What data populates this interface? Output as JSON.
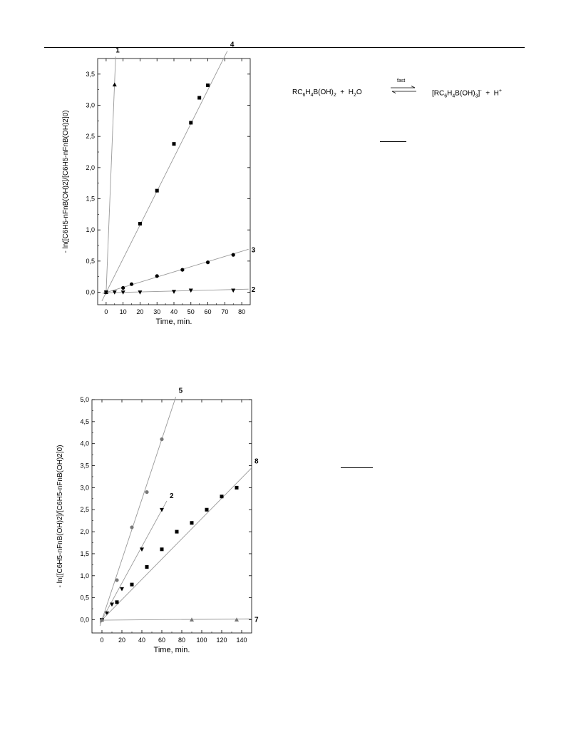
{
  "chart_data": [
    {
      "type": "scatter",
      "xlabel": "Time, min.",
      "ylabel": "- ln([C6H5-nFnB(OH)2]/[C6H5-nFnB(OH)2]0)",
      "xlim": [
        -5,
        85
      ],
      "ylim": [
        -0.2,
        3.75
      ],
      "xticks": [
        0,
        10,
        20,
        30,
        40,
        50,
        60,
        70,
        80
      ],
      "yticks": [
        "0,0",
        "0,5",
        "1,0",
        "1,5",
        "2,0",
        "2,5",
        "3,0",
        "3,5"
      ],
      "series": [
        {
          "name": "1",
          "marker": "triangle-up",
          "x": [
            0,
            5
          ],
          "y": [
            0,
            3.33
          ],
          "fit": {
            "x": [
              0,
              5.6
            ],
            "y": [
              0,
              3.78
            ]
          }
        },
        {
          "name": "4",
          "marker": "square",
          "x": [
            0,
            20,
            30,
            40,
            50,
            55,
            60
          ],
          "y": [
            0,
            1.1,
            1.63,
            2.38,
            2.72,
            3.12,
            3.32
          ],
          "fit": {
            "x": [
              -2.5,
              71.5
            ],
            "y": [
              -0.14,
              3.87
            ]
          }
        },
        {
          "name": "3",
          "marker": "circle",
          "x": [
            0,
            10,
            15,
            30,
            45,
            60,
            75
          ],
          "y": [
            0,
            0.07,
            0.13,
            0.26,
            0.36,
            0.48,
            0.6
          ],
          "fit": {
            "x": [
              -2,
              84
            ],
            "y": [
              -0.02,
              0.69
            ]
          }
        },
        {
          "name": "2",
          "marker": "triangle-down",
          "x": [
            0,
            5,
            10,
            20,
            40,
            50,
            75
          ],
          "y": [
            0,
            0,
            0,
            0,
            0.01,
            0.03,
            0.03
          ],
          "fit": {
            "x": [
              -2,
              84
            ],
            "y": [
              -0.01,
              0.05
            ]
          }
        }
      ]
    },
    {
      "type": "scatter",
      "xlabel": "Time, min.",
      "ylabel": "- ln([C6H5-nFnB(OH)2]/[C6H5-nFnB(OH)2]0)",
      "xlim": [
        -10,
        150
      ],
      "ylim": [
        -0.3,
        5.0
      ],
      "xticks": [
        0,
        20,
        40,
        60,
        80,
        100,
        120,
        140
      ],
      "yticks": [
        "0,0",
        "0,5",
        "1,0",
        "1,5",
        "2,0",
        "2,5",
        "3,0",
        "3,5",
        "4,0",
        "4,5",
        "5,0"
      ],
      "series": [
        {
          "name": "5",
          "marker": "circle",
          "x": [
            0,
            15,
            30,
            45,
            60
          ],
          "y": [
            0,
            0.9,
            2.1,
            2.9,
            4.1
          ],
          "fit": {
            "x": [
              -2,
              74
            ],
            "y": [
              -0.14,
              5.06
            ]
          }
        },
        {
          "name": "2",
          "marker": "triangle-down",
          "x": [
            0,
            5,
            10,
            20,
            40,
            60
          ],
          "y": [
            0,
            0.15,
            0.35,
            0.7,
            1.6,
            2.5
          ],
          "fit": {
            "x": [
              -2,
              65
            ],
            "y": [
              -0.08,
              2.7
            ]
          }
        },
        {
          "name": "8",
          "marker": "square",
          "x": [
            0,
            15,
            30,
            45,
            60,
            75,
            90,
            105,
            120,
            135
          ],
          "y": [
            0,
            0.4,
            0.8,
            1.2,
            1.6,
            2.0,
            2.2,
            2.5,
            2.8,
            3.0
          ],
          "fit": {
            "x": [
              -2,
              150
            ],
            "y": [
              -0.05,
              3.45
            ]
          }
        },
        {
          "name": "7",
          "marker": "triangle-up",
          "x": [
            0,
            90,
            135
          ],
          "y": [
            0,
            0,
            0
          ],
          "fit": {
            "x": [
              -2,
              150
            ],
            "y": [
              -0.01,
              0.02
            ]
          }
        }
      ]
    }
  ],
  "equation": {
    "left": "RC6H4B(OH)2 + H2O",
    "arrow_label": "fast",
    "right": "[RC6H4B(OH)3]- + H+"
  }
}
